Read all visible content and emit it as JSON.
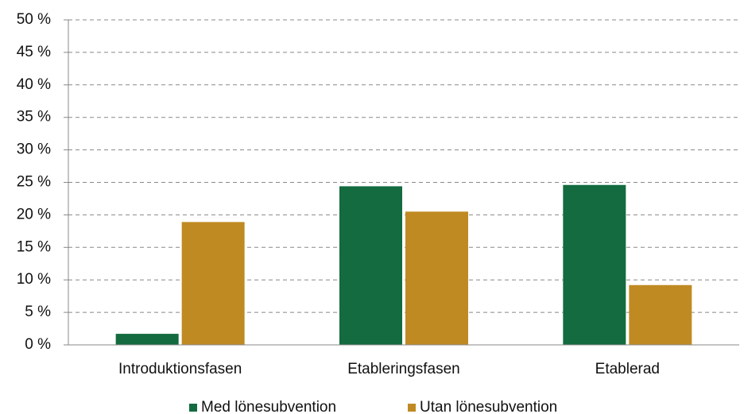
{
  "chart_data": {
    "type": "bar",
    "categories": [
      "Introduktionsfasen",
      "Etableringsfasen",
      "Etablerad"
    ],
    "series": [
      {
        "name": "Med lönesubvention",
        "color": "#136b3f",
        "values": [
          1.7,
          24.4,
          24.6
        ]
      },
      {
        "name": "Utan lönesubvention",
        "color": "#c08a23",
        "values": [
          18.9,
          20.5,
          9.2
        ]
      }
    ],
    "ylim": [
      0,
      50
    ],
    "yticks": [
      {
        "value": 0,
        "label": "0 %"
      },
      {
        "value": 5,
        "label": "5 %"
      },
      {
        "value": 10,
        "label": "10 %"
      },
      {
        "value": 15,
        "label": "15 %"
      },
      {
        "value": 20,
        "label": "20 %"
      },
      {
        "value": 25,
        "label": "25 %"
      },
      {
        "value": 30,
        "label": "30 %"
      },
      {
        "value": 35,
        "label": "35 %"
      },
      {
        "value": 40,
        "label": "40 %"
      },
      {
        "value": 45,
        "label": "45 %"
      },
      {
        "value": 50,
        "label": "50 %"
      }
    ],
    "grid": true,
    "legend": "bottom"
  }
}
